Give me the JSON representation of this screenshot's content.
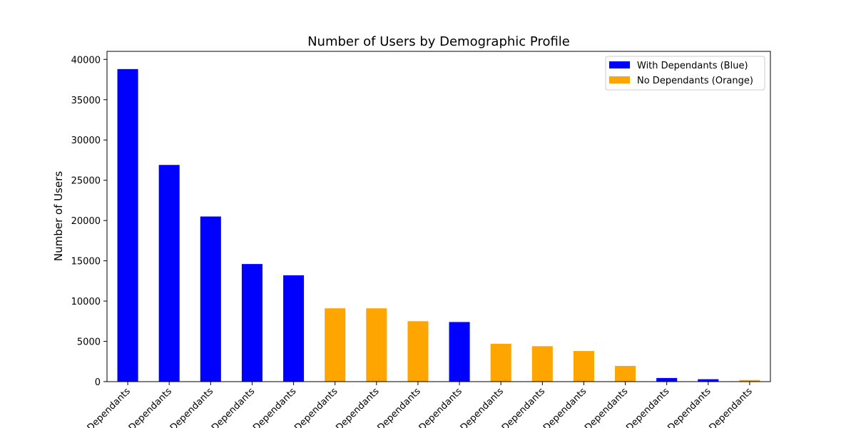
{
  "chart_data": {
    "type": "bar",
    "title": "Number of Users by Demographic Profile",
    "xlabel": "",
    "ylabel": "Number of Users",
    "ylim": [
      0,
      41000
    ],
    "yticks": [
      0,
      5000,
      10000,
      15000,
      20000,
      25000,
      30000,
      35000,
      40000
    ],
    "categories": [
      "Dependants",
      "Dependants",
      "Dependants",
      "Dependants",
      "Dependants",
      "Dependants",
      "Dependants",
      "Dependants",
      "Dependants",
      "Dependants",
      "Dependants",
      "Dependants",
      "Dependants",
      "Dependants",
      "Dependants",
      "Dependants"
    ],
    "values": [
      38800,
      26900,
      20500,
      14600,
      13200,
      9100,
      9100,
      7500,
      7400,
      4700,
      4400,
      3800,
      1950,
      450,
      300,
      200
    ],
    "bar_groups": [
      "with",
      "with",
      "with",
      "with",
      "with",
      "no",
      "no",
      "no",
      "with",
      "no",
      "no",
      "no",
      "no",
      "with",
      "with",
      "no"
    ],
    "legend": {
      "placement": "top-right",
      "entries": [
        {
          "key": "with",
          "label": "With Dependants (Blue)",
          "color": "#0000ff"
        },
        {
          "key": "no",
          "label": "No Dependants (Orange)",
          "color": "#ffa500"
        }
      ]
    },
    "grid": false
  }
}
